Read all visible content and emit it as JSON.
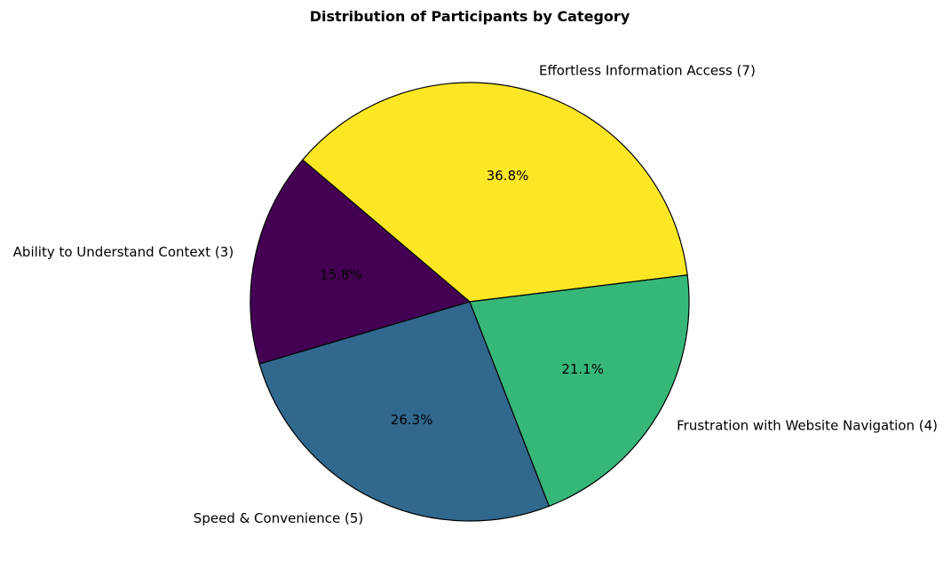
{
  "chart_data": {
    "type": "pie",
    "title": "Distribution of Participants by Category",
    "slices": [
      {
        "label": "Effortless Information Access (7)",
        "category": "Effortless Information Access",
        "value": 7,
        "percent_label": "36.8%",
        "color": "#fde725"
      },
      {
        "label": "Ability to Understand Context (3)",
        "category": "Ability to Understand Context",
        "value": 3,
        "percent_label": "15.8%",
        "color": "#440154"
      },
      {
        "label": "Speed & Convenience (5)",
        "category": "Speed & Convenience",
        "value": 5,
        "percent_label": "26.3%",
        "color": "#31688e"
      },
      {
        "label": "Frustration with Website Navigation (4)",
        "category": "Frustration with Website Navigation",
        "value": 4,
        "percent_label": "21.1%",
        "color": "#35b779"
      }
    ],
    "start_angle_deg": 7,
    "direction": "counterclockwise",
    "edge_color": "#000000",
    "legend": "none"
  }
}
